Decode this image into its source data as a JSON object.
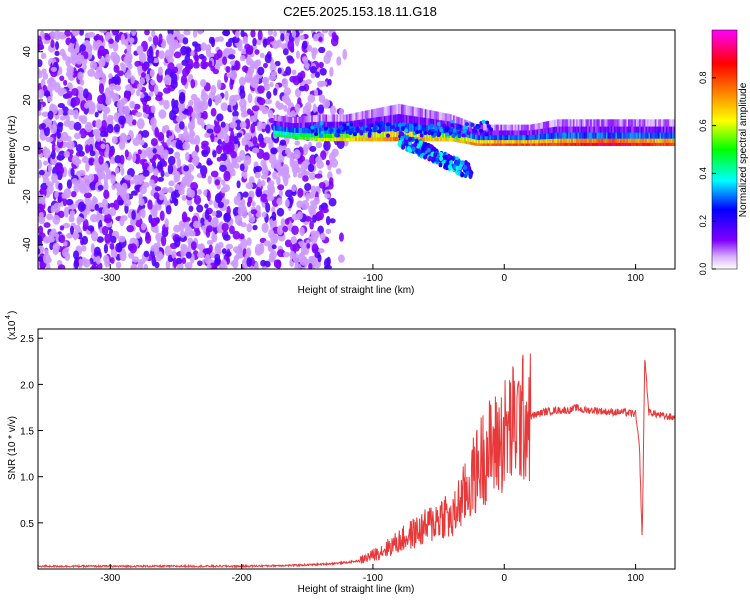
{
  "title": "C2E5.2025.153.18.11.G18",
  "chart_data": [
    {
      "type": "heatmap",
      "xlabel": "Height of straight line (km)",
      "ylabel": "Frequency (Hz)",
      "xlim": [
        -355,
        130
      ],
      "ylim": [
        -50,
        49
      ],
      "xticks": [
        -300,
        -200,
        -100,
        0,
        100
      ],
      "yticks": [
        -40,
        -20,
        0,
        20,
        40
      ],
      "colorbar": {
        "label": "Normalized spectral amplitude",
        "range": [
          0,
          1
        ],
        "ticks": [
          "0.0",
          "0.2",
          "0.4",
          "0.6",
          "0.8"
        ],
        "tick_values": [
          0.0,
          0.2,
          0.4,
          0.6,
          0.8
        ],
        "colors": [
          "#ffffff",
          "#8000ff",
          "#0000ff",
          "#00ffff",
          "#00ff00",
          "#ffff00",
          "#ff8000",
          "#ff0000",
          "#ff00ff"
        ]
      },
      "noise_region": {
        "x_from": -355,
        "x_to": -140,
        "amplitude": 0.2
      },
      "ridge": [
        {
          "x": -175,
          "f": 5,
          "width": 4,
          "amp": 0.45
        },
        {
          "x": -160,
          "f": 4,
          "width": 4,
          "amp": 0.5
        },
        {
          "x": -140,
          "f": 3,
          "width": 5,
          "amp": 0.6
        },
        {
          "x": -120,
          "f": 3,
          "width": 5,
          "amp": 0.65
        },
        {
          "x": -100,
          "f": 3,
          "width": 6,
          "amp": 0.7
        },
        {
          "x": -80,
          "f": 3,
          "width": 7,
          "amp": 0.75
        },
        {
          "x": -60,
          "f": 3,
          "width": 6,
          "amp": 0.7
        },
        {
          "x": -40,
          "f": 3,
          "width": 5,
          "amp": 0.65
        },
        {
          "x": -20,
          "f": 1,
          "width": 4,
          "amp": 0.75
        },
        {
          "x": 0,
          "f": 1,
          "width": 4,
          "amp": 0.8
        },
        {
          "x": 20,
          "f": 1,
          "width": 4,
          "amp": 0.8
        },
        {
          "x": 40,
          "f": 1,
          "width": 5,
          "amp": 0.8
        },
        {
          "x": 60,
          "f": 1,
          "width": 5,
          "amp": 0.85
        },
        {
          "x": 80,
          "f": 1,
          "width": 5,
          "amp": 0.9
        },
        {
          "x": 100,
          "f": 1,
          "width": 5,
          "amp": 0.85
        },
        {
          "x": 130,
          "f": 1,
          "width": 5,
          "amp": 0.8
        }
      ]
    },
    {
      "type": "line",
      "xlabel": "Height of straight line (km)",
      "ylabel": "SNR (10 * v/v)",
      "yscale_label": "(x10",
      "yscale_exp": "4",
      "xlim": [
        -355,
        130
      ],
      "ylim": [
        0,
        2.6
      ],
      "xticks": [
        -300,
        -200,
        -100,
        0,
        100
      ],
      "yticks": [
        0.5,
        1.0,
        1.5,
        2.0,
        2.5
      ],
      "ytick_labels": [
        "0.5",
        "1.0",
        "1.5",
        "2.0",
        "2.5"
      ],
      "line_color": "#e8393a",
      "series": [
        {
          "x": [
            -355,
            -300,
            -250,
            -200,
            -160,
            -140,
            -120,
            -110,
            -100,
            -90,
            -80,
            -70,
            -60,
            -50,
            -45,
            -40,
            -35,
            -30,
            -25,
            -20,
            -15,
            -10,
            -5,
            0,
            10,
            20,
            30,
            40,
            50,
            55,
            60,
            70,
            80,
            90,
            100,
            103,
            105,
            107,
            110,
            120,
            130
          ],
          "y": [
            0.03,
            0.03,
            0.03,
            0.03,
            0.04,
            0.05,
            0.07,
            0.09,
            0.15,
            0.22,
            0.3,
            0.38,
            0.45,
            0.55,
            0.6,
            0.5,
            0.7,
            0.8,
            0.95,
            1.1,
            1.25,
            1.3,
            1.35,
            1.45,
            1.6,
            1.65,
            1.7,
            1.72,
            1.72,
            1.75,
            1.72,
            1.72,
            1.7,
            1.7,
            1.68,
            1.3,
            0.3,
            2.3,
            1.7,
            1.66,
            1.64
          ]
        }
      ]
    }
  ]
}
